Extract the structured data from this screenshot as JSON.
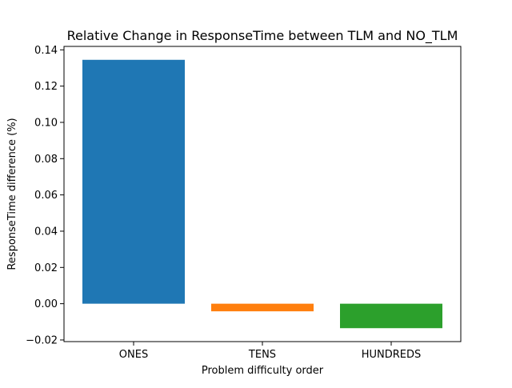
{
  "chart_data": {
    "type": "bar",
    "title": "Relative Change in ResponseTime between TLM and NO_TLM",
    "xlabel": "Problem difficulty order",
    "ylabel": "ResponseTime difference (%)",
    "categories": [
      "ONES",
      "TENS",
      "HUNDREDS"
    ],
    "values": [
      0.1345,
      -0.0042,
      -0.0135
    ],
    "colors": [
      "#1f77b4",
      "#ff7f0e",
      "#2ca02c"
    ],
    "ylim": [
      -0.0209,
      0.1419
    ],
    "yticks": [
      -0.02,
      0.0,
      0.02,
      0.04,
      0.06,
      0.08,
      0.1,
      0.12,
      0.14
    ],
    "ytick_labels": [
      "−0.02",
      "0.00",
      "0.02",
      "0.04",
      "0.06",
      "0.08",
      "0.10",
      "0.12",
      "0.14"
    ],
    "grid": false,
    "legend": "none"
  }
}
